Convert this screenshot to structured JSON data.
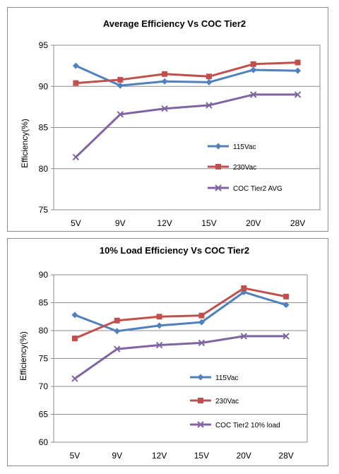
{
  "colors": {
    "s115": "#4f81bd",
    "s230": "#c0504d",
    "coc": "#8064a2",
    "grid": "#8c8c8c",
    "plot_bg": "#ffffff"
  },
  "chart_data": [
    {
      "type": "line",
      "title": "Average Efficiency Vs COC Tier2",
      "ylabel": "Efficiency(%)",
      "xlabel": "",
      "categories": [
        "5V",
        "9V",
        "12V",
        "15V",
        "20V",
        "28V"
      ],
      "ylim": [
        75,
        95
      ],
      "yticks": [
        75,
        80,
        85,
        90,
        95
      ],
      "grid": true,
      "legend_position": "inside-bottom-right",
      "series": [
        {
          "name": "115Vac",
          "values": [
            92.5,
            90.1,
            90.6,
            90.5,
            92.0,
            91.9
          ],
          "marker": "diamond",
          "color": "#4f81bd"
        },
        {
          "name": "230Vac",
          "values": [
            90.4,
            90.8,
            91.5,
            91.2,
            92.7,
            92.9
          ],
          "marker": "square",
          "color": "#c0504d"
        },
        {
          "name": "COC Tier2 AVG",
          "values": [
            81.4,
            86.6,
            87.3,
            87.7,
            89.0,
            89.0
          ],
          "marker": "x",
          "color": "#8064a2"
        }
      ]
    },
    {
      "type": "line",
      "title": "10% Load Efficiency Vs COC Tier2",
      "ylabel": "Efficiency(%)",
      "xlabel": "",
      "categories": [
        "5V",
        "9V",
        "12V",
        "15V",
        "20V",
        "28V"
      ],
      "ylim": [
        60,
        90
      ],
      "yticks": [
        60,
        65,
        70,
        75,
        80,
        85,
        90
      ],
      "grid": true,
      "legend_position": "inside-bottom-right",
      "series": [
        {
          "name": "115Vac",
          "values": [
            82.8,
            79.9,
            80.9,
            81.5,
            86.9,
            84.6
          ],
          "marker": "diamond",
          "color": "#4f81bd"
        },
        {
          "name": "230Vac",
          "values": [
            78.6,
            81.8,
            82.5,
            82.7,
            87.6,
            86.1
          ],
          "marker": "square",
          "color": "#c0504d"
        },
        {
          "name": "COC Tier2 10% load",
          "values": [
            71.4,
            76.7,
            77.4,
            77.8,
            79.0,
            79.0
          ],
          "marker": "x",
          "color": "#8064a2"
        }
      ]
    }
  ]
}
